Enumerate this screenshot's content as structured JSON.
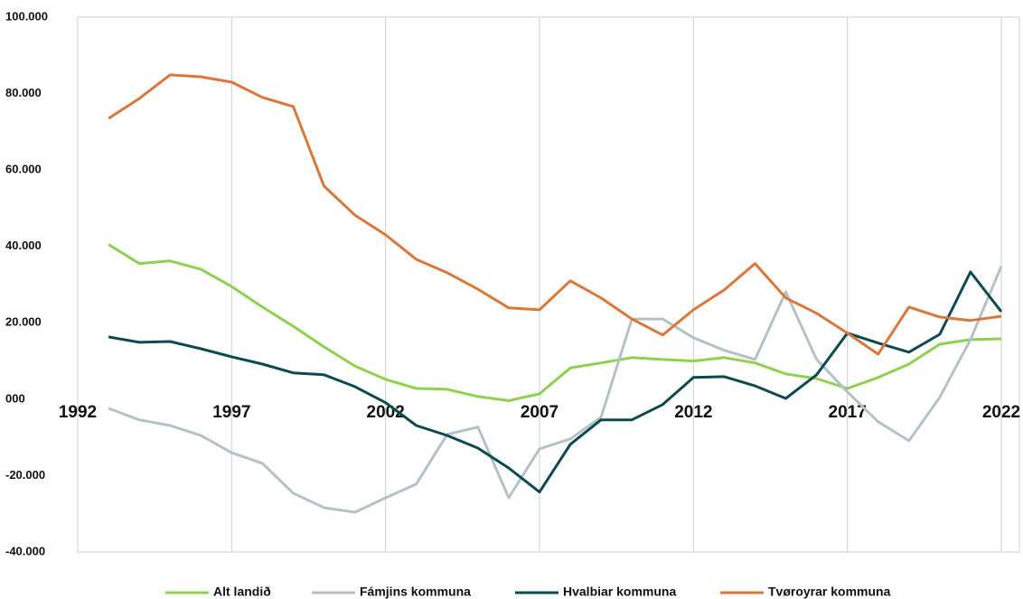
{
  "chart_data": {
    "type": "line",
    "x": [
      1993,
      1994,
      1995,
      1996,
      1997,
      1998,
      1999,
      2000,
      2001,
      2002,
      2003,
      2004,
      2005,
      2006,
      2007,
      2008,
      2009,
      2010,
      2011,
      2012,
      2013,
      2014,
      2015,
      2016,
      2017,
      2018,
      2019,
      2020,
      2021,
      2022
    ],
    "series": [
      {
        "name": "Alt landið",
        "color": "#8fd14f",
        "values": [
          40500,
          35500,
          36200,
          34000,
          29500,
          24100,
          19100,
          13700,
          8700,
          5200,
          2800,
          2600,
          700,
          -400,
          1400,
          8200,
          9500,
          10900,
          10400,
          10000,
          10900,
          9500,
          6600,
          5400,
          2800,
          5700,
          9200,
          14400,
          15600,
          15800
        ]
      },
      {
        "name": "Fámjins kommuna",
        "color": "#b4c2c8",
        "values": [
          -2400,
          -5400,
          -6900,
          -9500,
          -14000,
          -16800,
          -24600,
          -28400,
          -29600,
          -25800,
          -22200,
          -9200,
          -7300,
          -25800,
          -13000,
          -10400,
          -4700,
          21000,
          21000,
          16100,
          12800,
          10400,
          28100,
          10400,
          1900,
          -5900,
          -10900,
          500,
          15600,
          34800
        ]
      },
      {
        "name": "Hvalbiar kommuna",
        "color": "#0d4a4f",
        "values": [
          16300,
          14900,
          15100,
          13200,
          11100,
          9200,
          6900,
          6400,
          3300,
          -900,
          -6900,
          -9500,
          -12800,
          -18000,
          -24300,
          -11800,
          -5400,
          -5400,
          -1400,
          5700,
          5900,
          3500,
          200,
          6400,
          17300,
          14700,
          12300,
          17000,
          33300,
          22900
        ]
      },
      {
        "name": "Tvøroyrar kommuna",
        "color": "#d9783a",
        "values": [
          73500,
          78700,
          84900,
          84400,
          83000,
          79000,
          76600,
          55800,
          48200,
          43000,
          36600,
          33100,
          28800,
          23900,
          23400,
          31000,
          26500,
          21000,
          16800,
          23400,
          28600,
          35500,
          26500,
          22500,
          17300,
          11800,
          24100,
          21500,
          20600,
          21700
        ]
      }
    ],
    "xlim": [
      1992,
      2022
    ],
    "xticks": [
      1992,
      1997,
      2002,
      2007,
      2012,
      2017,
      2022
    ],
    "ylim": [
      -40000,
      100000
    ],
    "yticks": [
      {
        "value": -40000,
        "label": "-40.000"
      },
      {
        "value": -20000,
        "label": "-20.000"
      },
      {
        "value": 0,
        "label": "000"
      },
      {
        "value": 20000,
        "label": "20.000"
      },
      {
        "value": 40000,
        "label": "40.000"
      },
      {
        "value": 60000,
        "label": "60.000"
      },
      {
        "value": 80000,
        "label": "80.000"
      },
      {
        "value": 100000,
        "label": "100.000"
      }
    ],
    "xgrid": true,
    "legend": "bottom"
  }
}
